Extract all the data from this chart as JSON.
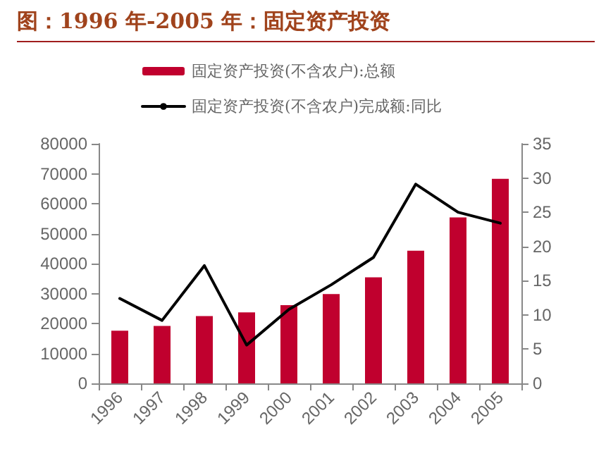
{
  "chart_data": {
    "type": "bar",
    "title": "图：1996 年-2005 年：固定资产投资",
    "categories": [
      "1996",
      "1997",
      "1998",
      "1999",
      "2000",
      "2001",
      "2002",
      "2003",
      "2004",
      "2005"
    ],
    "series": [
      {
        "name": "固定资产投资(不含农户):总额",
        "color": "#c0002e",
        "values": [
          17600,
          19200,
          22500,
          23700,
          26100,
          29800,
          35400,
          44300,
          55400,
          68300
        ]
      },
      {
        "name": "固定资产投资(不含农户)完成额:同比",
        "type": "line",
        "axis": "y2",
        "color": "#000000",
        "values": [
          12.4,
          9.2,
          17.2,
          5.6,
          10.8,
          14.4,
          18.4,
          29.1,
          25.0,
          23.4
        ]
      }
    ],
    "ylim": [
      0,
      80000
    ],
    "yticks": [
      0,
      10000,
      20000,
      30000,
      40000,
      50000,
      60000,
      70000,
      80000
    ],
    "y2lim": [
      0,
      35
    ],
    "y2ticks": [
      0,
      5,
      10,
      15,
      20,
      25,
      30,
      35
    ],
    "grid": false,
    "legend": "top",
    "marker": "none",
    "line_style": "solid"
  }
}
